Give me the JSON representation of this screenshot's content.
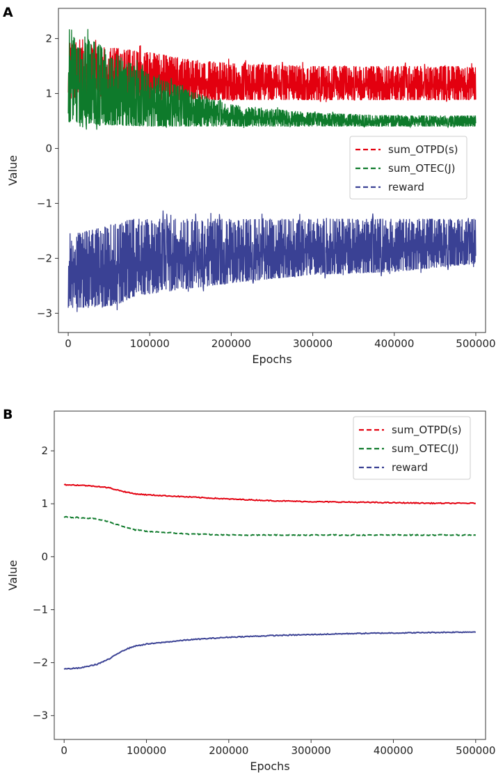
{
  "colors": {
    "red": "#e3000f",
    "green": "#0e7a2b",
    "blue": "#3a4194"
  },
  "chart_data": [
    {
      "panel": "A",
      "type": "line",
      "title": "",
      "xlabel": "Epochs",
      "ylabel": "Value",
      "xlim": [
        -12000,
        512000
      ],
      "ylim": [
        -3.35,
        2.55
      ],
      "xticks": [
        0,
        100000,
        200000,
        300000,
        400000,
        500000
      ],
      "xtick_labels": [
        "0",
        "100000",
        "200000",
        "300000",
        "400000",
        "500000"
      ],
      "yticks": [
        -3,
        -2,
        -1,
        0,
        1,
        2
      ],
      "ytick_labels": [
        "−3",
        "−2",
        "−1",
        "0",
        "1",
        "2"
      ],
      "legend_position": "center-right",
      "series": [
        {
          "name": "sum_OTPD(s)",
          "color": "#e3000f",
          "style": "dashed",
          "band_x": [
            0,
            50000,
            100000,
            150000,
            200000,
            300000,
            400000,
            500000
          ],
          "band_low": [
            0.9,
            0.9,
            0.88,
            0.88,
            0.88,
            0.88,
            0.88,
            0.88
          ],
          "band_high": [
            1.95,
            1.85,
            1.75,
            1.62,
            1.55,
            1.5,
            1.5,
            1.5
          ]
        },
        {
          "name": "sum_OTEC(J)",
          "color": "#0e7a2b",
          "style": "dashed",
          "band_x": [
            0,
            50000,
            100000,
            150000,
            200000,
            300000,
            400000,
            500000
          ],
          "band_low": [
            0.48,
            0.42,
            0.4,
            0.4,
            0.4,
            0.4,
            0.4,
            0.4
          ],
          "band_high": [
            2.2,
            1.8,
            1.35,
            1.05,
            0.8,
            0.65,
            0.6,
            0.6
          ]
        },
        {
          "name": "reward",
          "color": "#3a4194",
          "style": "dashed",
          "band_x": [
            0,
            30000,
            60000,
            80000,
            100000,
            200000,
            300000,
            400000,
            500000
          ],
          "band_low": [
            -2.9,
            -2.9,
            -2.85,
            -2.7,
            -2.65,
            -2.45,
            -2.3,
            -2.25,
            -2.1
          ],
          "band_high": [
            -1.55,
            -1.48,
            -1.35,
            -1.28,
            -1.28,
            -1.28,
            -1.28,
            -1.28,
            -1.28
          ]
        }
      ]
    },
    {
      "panel": "B",
      "type": "line",
      "title": "",
      "xlabel": "Epochs",
      "ylabel": "Value",
      "xlim": [
        -12000,
        512000
      ],
      "ylim": [
        -3.45,
        2.75
      ],
      "xticks": [
        0,
        100000,
        200000,
        300000,
        400000,
        500000
      ],
      "xtick_labels": [
        "0",
        "100000",
        "200000",
        "300000",
        "400000",
        "500000"
      ],
      "yticks": [
        -3,
        -2,
        -1,
        0,
        1,
        2
      ],
      "ytick_labels": [
        "−3",
        "−2",
        "−1",
        "0",
        "1",
        "2"
      ],
      "legend_position": "top-right",
      "series": [
        {
          "name": "sum_OTPD(s)",
          "color": "#e3000f",
          "style": "dashed",
          "x": [
            0,
            20000,
            40000,
            55000,
            70000,
            85000,
            100000,
            150000,
            200000,
            250000,
            300000,
            350000,
            400000,
            450000,
            500000
          ],
          "y": [
            1.36,
            1.35,
            1.33,
            1.3,
            1.24,
            1.19,
            1.17,
            1.13,
            1.09,
            1.06,
            1.04,
            1.03,
            1.02,
            1.01,
            1.01
          ]
        },
        {
          "name": "sum_OTEC(J)",
          "color": "#0e7a2b",
          "style": "dashed",
          "x": [
            0,
            20000,
            40000,
            55000,
            70000,
            85000,
            100000,
            150000,
            200000,
            250000,
            300000,
            350000,
            400000,
            450000,
            500000
          ],
          "y": [
            0.75,
            0.74,
            0.71,
            0.66,
            0.58,
            0.51,
            0.48,
            0.43,
            0.41,
            0.41,
            0.41,
            0.41,
            0.41,
            0.41,
            0.41
          ]
        },
        {
          "name": "reward",
          "color": "#3a4194",
          "style": "dashed",
          "x": [
            0,
            20000,
            40000,
            55000,
            70000,
            85000,
            100000,
            150000,
            200000,
            250000,
            300000,
            350000,
            400000,
            450000,
            500000
          ],
          "y": [
            -2.12,
            -2.1,
            -2.03,
            -1.93,
            -1.78,
            -1.69,
            -1.65,
            -1.57,
            -1.52,
            -1.49,
            -1.47,
            -1.45,
            -1.44,
            -1.43,
            -1.42
          ]
        }
      ]
    }
  ]
}
